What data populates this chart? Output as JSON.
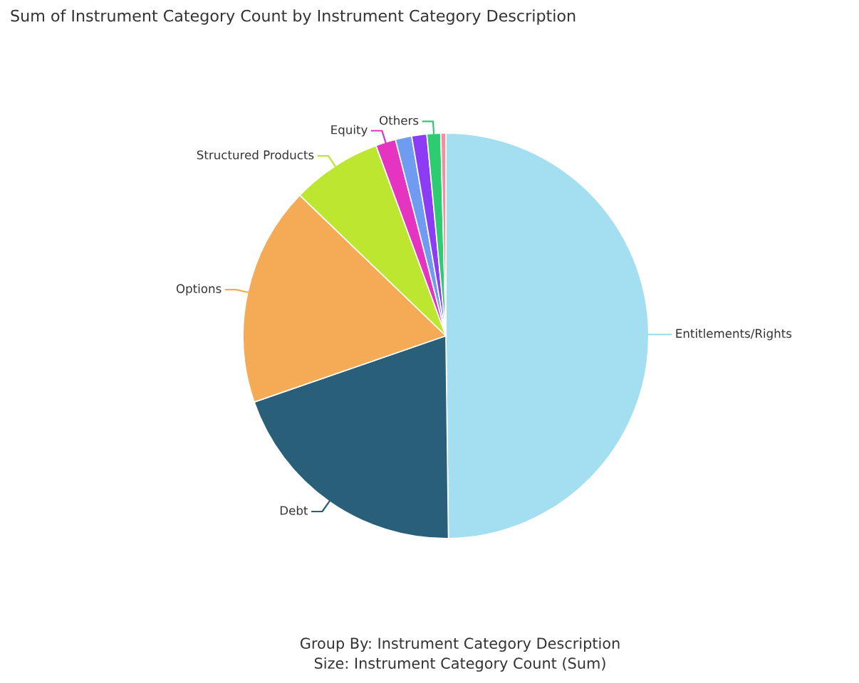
{
  "chart_data": {
    "type": "pie",
    "title": "Sum of Instrument Category Count by Instrument Category Description",
    "categories": [
      "Entitlements/Rights",
      "Debt",
      "Options",
      "Structured Products",
      "Equity",
      null,
      null,
      "Others",
      null
    ],
    "values": [
      49.8,
      19.9,
      17.5,
      7.2,
      1.6,
      1.3,
      1.2,
      1.1,
      0.4
    ],
    "colors": [
      "#a3dff0",
      "#2a5f7a",
      "#f5aa55",
      "#bde630",
      "#e535c0",
      "#6f9cf0",
      "#8d3cf5",
      "#2ecc71",
      "#f08fa0"
    ],
    "legend": false,
    "annotations": [
      "Group By: Instrument Category Description",
      "Size: Instrument Category Count (Sum)"
    ]
  }
}
